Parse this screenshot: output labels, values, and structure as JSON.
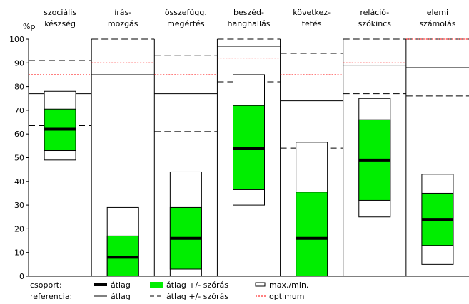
{
  "chart_data": {
    "type": "box",
    "ylabel": "%p",
    "ylim": [
      0,
      100
    ],
    "yticks": [
      0,
      10,
      20,
      30,
      40,
      50,
      60,
      70,
      80,
      90,
      100
    ],
    "grid": false,
    "legend_position": "bottom",
    "categories": [
      {
        "label_lines": [
          "szociális",
          "készség"
        ],
        "group": {
          "min": 49,
          "max": 78,
          "mean": 62,
          "sd_low": 53,
          "sd_high": 70.5
        },
        "reference": {
          "mean": 77,
          "sd_low": 63.5,
          "sd_high": 91,
          "optimum": 85
        }
      },
      {
        "label_lines": [
          "írás-",
          "mozgás"
        ],
        "group": {
          "min": 0,
          "max": 29,
          "mean": 8,
          "sd_low": 0,
          "sd_high": 17
        },
        "reference": {
          "mean": 85,
          "sd_low": 68,
          "sd_high": 100,
          "optimum": 90
        }
      },
      {
        "label_lines": [
          "összefügg.",
          "megértés"
        ],
        "group": {
          "min": 0,
          "max": 44,
          "mean": 16,
          "sd_low": 3,
          "sd_high": 29
        },
        "reference": {
          "mean": 77,
          "sd_low": 61,
          "sd_high": 93,
          "optimum": 85
        }
      },
      {
        "label_lines": [
          "beszéd-",
          "hanghallás"
        ],
        "group": {
          "min": 30,
          "max": 85,
          "mean": 54,
          "sd_low": 36.5,
          "sd_high": 72
        },
        "reference": {
          "mean": 97,
          "sd_low": 82,
          "sd_high": 100,
          "optimum": 92
        }
      },
      {
        "label_lines": [
          "következ-",
          "tetés"
        ],
        "group": {
          "min": 0,
          "max": 56.5,
          "mean": 16,
          "sd_low": 0,
          "sd_high": 35.5
        },
        "reference": {
          "mean": 74,
          "sd_low": 54,
          "sd_high": 94,
          "optimum": 85
        }
      },
      {
        "label_lines": [
          "reláció-",
          "szókincs"
        ],
        "group": {
          "min": 25,
          "max": 75,
          "mean": 49,
          "sd_low": 32,
          "sd_high": 66
        },
        "reference": {
          "mean": 89,
          "sd_low": 77,
          "sd_high": 100,
          "optimum": 90
        }
      },
      {
        "label_lines": [
          "elemi",
          "számolás"
        ],
        "group": {
          "min": 5,
          "max": 43,
          "mean": 24,
          "sd_low": 13,
          "sd_high": 35
        },
        "reference": {
          "mean": 88,
          "sd_low": 76,
          "sd_high": 100,
          "optimum": 100
        }
      }
    ],
    "legend": {
      "group_label": "csoport:",
      "reference_label": "referencia:",
      "mean": "átlag",
      "sd": "átlag +/- szórás",
      "minmax": "max./min.",
      "optimum": "optimum"
    },
    "colors": {
      "sd_fill": "#00ee00",
      "optimum": "#ff0000",
      "line": "#000000"
    }
  }
}
